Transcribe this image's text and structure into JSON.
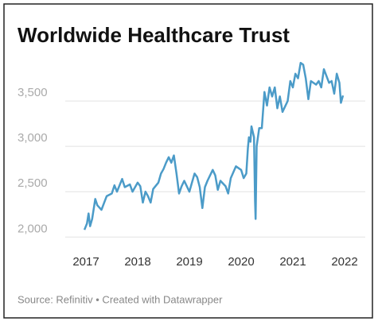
{
  "chart_data": {
    "type": "line",
    "title": "Worldwide Healthcare Trust",
    "source": "Source: Refinitiv • Created with Datawrapper",
    "color": "#4b9bc8",
    "x": [
      2016.97,
      2017.02,
      2017.05,
      2017.08,
      2017.12,
      2017.18,
      2017.22,
      2017.3,
      2017.4,
      2017.5,
      2017.55,
      2017.6,
      2017.7,
      2017.75,
      2017.85,
      2017.9,
      2018.0,
      2018.05,
      2018.1,
      2018.15,
      2018.2,
      2018.25,
      2018.3,
      2018.4,
      2018.45,
      2018.5,
      2018.55,
      2018.6,
      2018.65,
      2018.7,
      2018.75,
      2018.8,
      2018.85,
      2018.9,
      2019.0,
      2019.05,
      2019.1,
      2019.15,
      2019.2,
      2019.25,
      2019.3,
      2019.35,
      2019.45,
      2019.5,
      2019.55,
      2019.6,
      2019.7,
      2019.75,
      2019.8,
      2019.9,
      2020.0,
      2020.05,
      2020.1,
      2020.13,
      2020.15,
      2020.18,
      2020.2,
      2020.25,
      2020.27,
      2020.28,
      2020.3,
      2020.35,
      2020.4,
      2020.45,
      2020.5,
      2020.55,
      2020.6,
      2020.65,
      2020.7,
      2020.75,
      2020.8,
      2020.9,
      2020.95,
      2021.0,
      2021.05,
      2021.1,
      2021.15,
      2021.2,
      2021.25,
      2021.3,
      2021.35,
      2021.45,
      2021.5,
      2021.55,
      2021.6,
      2021.7,
      2021.75,
      2021.8,
      2021.85,
      2021.9,
      2021.93,
      2021.97
    ],
    "values": [
      2080,
      2150,
      2260,
      2120,
      2200,
      2420,
      2350,
      2300,
      2450,
      2480,
      2570,
      2500,
      2640,
      2550,
      2580,
      2500,
      2600,
      2560,
      2380,
      2500,
      2450,
      2380,
      2530,
      2600,
      2700,
      2750,
      2820,
      2880,
      2820,
      2900,
      2700,
      2480,
      2560,
      2620,
      2500,
      2600,
      2700,
      2660,
      2550,
      2320,
      2550,
      2620,
      2740,
      2680,
      2520,
      2620,
      2560,
      2480,
      2650,
      2780,
      2740,
      2650,
      2700,
      2980,
      3100,
      3050,
      3220,
      3100,
      2400,
      2200,
      3000,
      3200,
      3200,
      3600,
      3450,
      3650,
      3550,
      3650,
      3420,
      3550,
      3380,
      3500,
      3720,
      3650,
      3800,
      3750,
      3920,
      3900,
      3750,
      3520,
      3720,
      3680,
      3720,
      3650,
      3850,
      3700,
      3720,
      3580,
      3800,
      3700,
      3480,
      3560
    ],
    "xlim": [
      2016.6,
      2022.4
    ],
    "xticks": [
      2017,
      2018,
      2019,
      2020,
      2021,
      2022
    ],
    "ylim": [
      1950,
      4000
    ],
    "yticks": [
      {
        "value": 2000,
        "label": "2,000"
      },
      {
        "value": 2500,
        "label": "2,500"
      },
      {
        "value": 3000,
        "label": "3,000"
      },
      {
        "value": 3500,
        "label": "3,500"
      }
    ],
    "grid": true
  }
}
